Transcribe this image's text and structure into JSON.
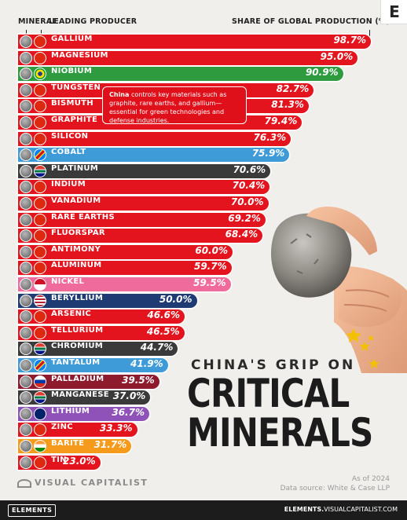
{
  "header": {
    "mineral_label": "MINERAL",
    "producer_label": "LEADING PRODUCER",
    "share_label": "SHARE OF GLOBAL PRODUCTION (%)",
    "logo": "E"
  },
  "callout": {
    "bold": "China",
    "text": " controls key materials such as graphite, rare earths, and gallium—essential for green technologies and defense industries."
  },
  "title": {
    "line1": "CHINA'S GRIP ON",
    "line2": "CRITICAL",
    "line3": "MINERALS"
  },
  "branding": {
    "name": "VISUAL CAPITALIST",
    "as_of": "As of 2024",
    "source": "Data source: White & Case LLP",
    "footer_left": "ELEMENTS",
    "footer_right_bold": "ELEMENTS.",
    "footer_right": "VISUALCAPITALIST.COM"
  },
  "colors": {
    "china_red": "#e3141d",
    "brazil_green": "#2e9c3e",
    "drc_blue": "#3f9ad8",
    "south_africa_dark": "#3a3a3a",
    "indonesia_pink": "#ee6b9c",
    "us_navy": "#1f3b73",
    "russia_maroon": "#8e1a2e",
    "australia_purple": "#8e52b8",
    "india_orange": "#f59a1a"
  },
  "chart_data": {
    "type": "bar",
    "orientation": "horizontal",
    "xlim": [
      0,
      100
    ],
    "xlabel": "SHARE OF GLOBAL PRODUCTION (%)",
    "grid": false,
    "legend": "none",
    "categories": [
      "GALLIUM",
      "MAGNESIUM",
      "NIOBIUM",
      "TUNGSTEN",
      "BISMUTH",
      "GRAPHITE",
      "SILICON",
      "COBALT",
      "PLATINUM",
      "INDIUM",
      "VANADIUM",
      "RARE EARTHS",
      "FLUORSPAR",
      "ANTIMONY",
      "ALUMINUM",
      "NICKEL",
      "BERYLLIUM",
      "ARSENIC",
      "TELLURIUM",
      "CHROMIUM",
      "TANTALUM",
      "PALLADIUM",
      "MANGANESE",
      "LITHIUM",
      "ZINC",
      "BARITE",
      "TIN"
    ],
    "values": [
      98.7,
      95.0,
      90.9,
      82.7,
      81.3,
      79.4,
      76.3,
      75.9,
      70.6,
      70.4,
      70.0,
      69.2,
      68.4,
      60.0,
      59.7,
      59.5,
      50.0,
      46.6,
      46.5,
      44.7,
      41.9,
      39.5,
      37.0,
      36.7,
      33.3,
      31.7,
      23.0
    ],
    "labels": [
      "98.7%",
      "95.0%",
      "90.9%",
      "82.7%",
      "81.3%",
      "79.4%",
      "76.3%",
      "75.9%",
      "70.6%",
      "70.4%",
      "70.0%",
      "69.2%",
      "68.4%",
      "60.0%",
      "59.7%",
      "59.5%",
      "50.0%",
      "46.6%",
      "46.5%",
      "44.7%",
      "41.9%",
      "39.5%",
      "37.0%",
      "36.7%",
      "33.3%",
      "31.7%",
      "23.0%"
    ],
    "producer": [
      "china",
      "china",
      "brazil",
      "china",
      "china",
      "china",
      "china",
      "drc",
      "south_africa",
      "china",
      "china",
      "china",
      "china",
      "china",
      "china",
      "indonesia",
      "usa",
      "china",
      "china",
      "south_africa",
      "drc",
      "russia",
      "south_africa",
      "australia",
      "china",
      "india",
      "china"
    ],
    "bar_colors": [
      "#e3141d",
      "#e3141d",
      "#2e9c3e",
      "#e3141d",
      "#e3141d",
      "#e3141d",
      "#e3141d",
      "#3f9ad8",
      "#3a3a3a",
      "#e3141d",
      "#e3141d",
      "#e3141d",
      "#e3141d",
      "#e3141d",
      "#e3141d",
      "#ee6b9c",
      "#1f3b73",
      "#e3141d",
      "#e3141d",
      "#3a3a3a",
      "#3f9ad8",
      "#8e1a2e",
      "#3a3a3a",
      "#8e52b8",
      "#e3141d",
      "#f59a1a",
      "#e3141d"
    ]
  }
}
